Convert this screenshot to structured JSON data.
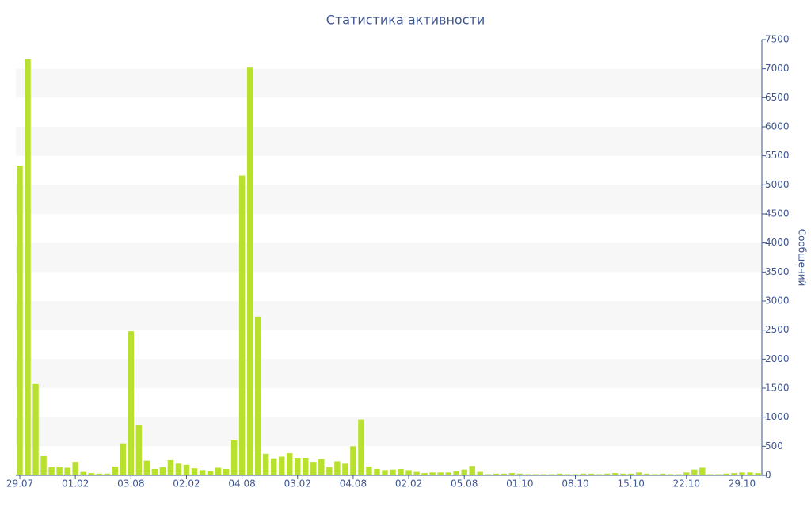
{
  "chart_data": {
    "type": "bar",
    "title": "Статистика активности",
    "y_label": "Сообщений",
    "color": "#b8e02e",
    "grid_bands": true,
    "ylim": [
      0,
      7500
    ],
    "yticks": [
      0,
      500,
      1000,
      1500,
      2000,
      2500,
      3000,
      3500,
      4000,
      4500,
      5000,
      5500,
      6000,
      6500,
      7000,
      7500
    ],
    "categories": [
      "29.07",
      null,
      null,
      null,
      null,
      null,
      null,
      "01.02",
      null,
      null,
      null,
      null,
      null,
      null,
      "03.08",
      null,
      null,
      null,
      null,
      null,
      null,
      "02.02",
      null,
      null,
      null,
      null,
      null,
      null,
      "04.08",
      null,
      null,
      null,
      null,
      null,
      null,
      "03.02",
      null,
      null,
      null,
      null,
      null,
      null,
      "04.08",
      null,
      null,
      null,
      null,
      null,
      null,
      "02.02",
      null,
      null,
      null,
      null,
      null,
      null,
      "05.08",
      null,
      null,
      null,
      null,
      null,
      null,
      "01.10",
      null,
      null,
      null,
      null,
      null,
      null,
      "08.10",
      null,
      null,
      null,
      null,
      null,
      null,
      "15.10",
      null,
      null,
      null,
      null,
      null,
      null,
      "22.10",
      null,
      null,
      null,
      null,
      null,
      null,
      "29.10",
      null,
      null
    ],
    "values": [
      5330,
      7160,
      1570,
      340,
      140,
      140,
      130,
      230,
      60,
      40,
      30,
      30,
      150,
      550,
      2480,
      870,
      250,
      110,
      140,
      260,
      200,
      180,
      120,
      90,
      70,
      130,
      110,
      600,
      5160,
      7020,
      2730,
      370,
      290,
      320,
      380,
      300,
      300,
      230,
      280,
      140,
      240,
      200,
      500,
      960,
      150,
      110,
      90,
      100,
      110,
      90,
      60,
      40,
      50,
      50,
      50,
      70,
      100,
      160,
      60,
      20,
      30,
      30,
      40,
      30,
      20,
      20,
      20,
      20,
      30,
      20,
      20,
      30,
      30,
      20,
      30,
      40,
      30,
      30,
      50,
      30,
      20,
      30,
      20,
      20,
      50,
      100,
      130,
      20,
      20,
      30,
      40,
      50,
      50,
      40
    ]
  }
}
